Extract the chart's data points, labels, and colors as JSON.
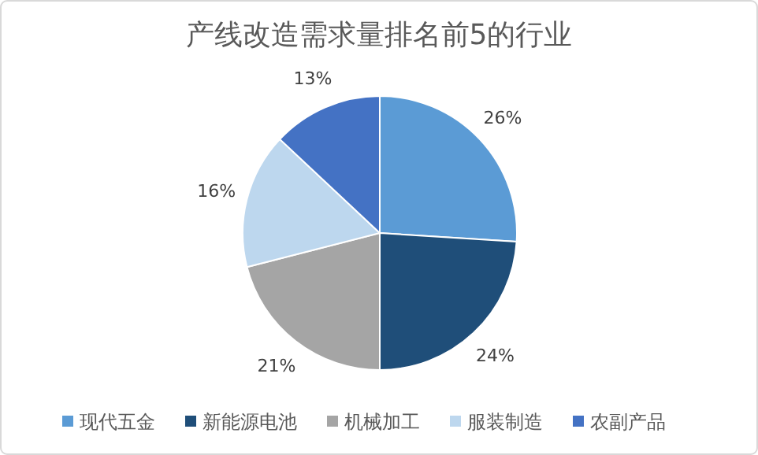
{
  "chart_data": {
    "type": "pie",
    "title": "产线改造需求量排名前5的行业",
    "categories": [
      "现代五金",
      "新能源电池",
      "机械加工",
      "服装制造",
      "农副产品"
    ],
    "values": [
      26,
      24,
      21,
      16,
      13
    ],
    "value_labels": [
      "26%",
      "24%",
      "21%",
      "16%",
      "13%"
    ],
    "colors": [
      "#5b9bd5",
      "#1f4e79",
      "#a5a5a5",
      "#bdd7ee",
      "#4472c4"
    ],
    "legend": "bottom"
  }
}
